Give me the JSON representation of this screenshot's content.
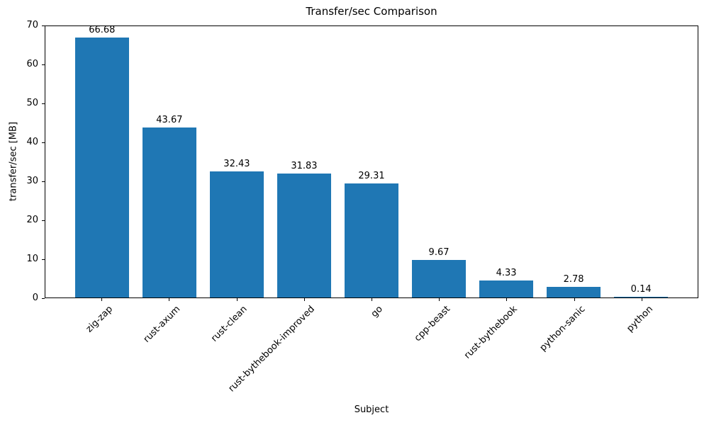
{
  "chart_data": {
    "type": "bar",
    "title": "Transfer/sec Comparison",
    "xlabel": "Subject",
    "ylabel": "transfer/sec [MB]",
    "categories": [
      "zig-zap",
      "rust-axum",
      "rust-clean",
      "rust-bythebook-improved",
      "go",
      "cpp-beast",
      "rust-bythebook",
      "python-sanic",
      "python"
    ],
    "values": [
      66.68,
      43.67,
      32.43,
      31.83,
      29.31,
      9.67,
      4.33,
      2.78,
      0.14
    ],
    "bar_value_labels": [
      "66.68",
      "43.67",
      "32.43",
      "31.83",
      "29.31",
      "9.67",
      "4.33",
      "2.78",
      "0.14"
    ],
    "ylim": [
      0,
      70
    ],
    "yticks": [
      0,
      10,
      20,
      30,
      40,
      50,
      60,
      70
    ],
    "bar_color": "#1f77b4",
    "grid": false,
    "legend_position": "none"
  }
}
